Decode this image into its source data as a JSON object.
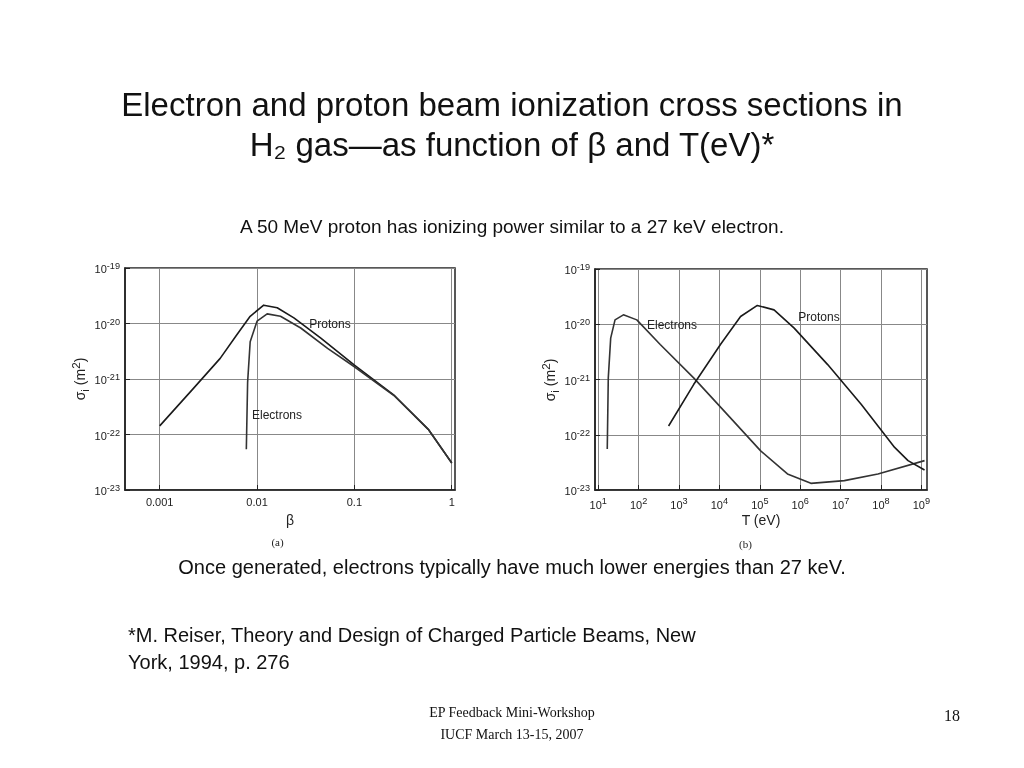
{
  "chart_data": [
    {
      "type": "other",
      "title": "Electron and proton beam ionization cross sections in H₂ gas—as function of β and T(eV)*",
      "subtitle": "A 50 MeV proton has ionizing power similar to a 27 keV electron."
    },
    {
      "type": "line",
      "xlabel": "β",
      "ylabel": "σ$_{i}$ (m$^{2}$)",
      "log": "xy",
      "grid": true,
      "marker": "none",
      "xlim": [
        0.00044,
        1.08
      ],
      "ylim": [
        1e-23,
        1e-19
      ],
      "xticks": [
        0.001,
        0.01,
        0.1,
        1
      ],
      "yticks": [
        {
          "value": 1e-23,
          "label": "10$^{-23}$"
        },
        {
          "value": 1e-22,
          "label": "10$^{-22}$"
        },
        {
          "value": 1e-21,
          "label": "10$^{-21}$"
        },
        {
          "value": 1e-20,
          "label": "10$^{-20}$"
        },
        {
          "value": 1e-19,
          "label": "10$^{-19}$"
        }
      ],
      "annotations": [
        "Protons",
        "Electrons",
        "(a)"
      ],
      "series": [
        {
          "color": "#1a1a1a",
          "x": [
            0.001,
            0.00221,
            0.00418,
            0.0062,
            0.0085,
            0.0117,
            0.0161,
            0.0239,
            0.0452,
            0.1,
            0.259,
            0.574,
            1
          ],
          "values": [
            1.43e-22,
            6.7e-22,
            2.35e-21,
            6.25e-21,
            1.35e-20,
            2.14e-20,
            1.92e-20,
            1.26e-20,
            5.45e-21,
            1.78e-21,
            5e-22,
            1.24e-22,
            3.06e-23
          ]
        },
        {
          "color": "#333333",
          "x": [
            0.00776,
            0.008,
            0.0085,
            0.01,
            0.0127,
            0.0174,
            0.0281,
            0.053,
            0.1,
            0.259,
            0.574,
            1
          ],
          "values": [
            5.4e-23,
            8.8e-22,
            4.7e-21,
            1.1e-20,
            1.49e-20,
            1.35e-20,
            8.3e-21,
            3.57e-21,
            1.66e-21,
            4.9e-22,
            1.24e-22,
            3.06e-23
          ]
        }
      ]
    },
    {
      "type": "line",
      "xlabel": "T (eV)",
      "ylabel": "σ$_{i}$ (m$^{2}$)",
      "log": "xy",
      "grid": true,
      "marker": "none",
      "xlim": [
        8.3,
        1380000000.0
      ],
      "ylim": [
        1e-23,
        1e-19
      ],
      "xticks": [
        {
          "value": 10,
          "label": "10$^{1}$"
        },
        {
          "value": 100,
          "label": "10$^{2}$"
        },
        {
          "value": 1000,
          "label": "10$^{3}$"
        },
        {
          "value": 10000,
          "label": "10$^{4}$"
        },
        {
          "value": 100000,
          "label": "10$^{5}$"
        },
        {
          "value": 1000000,
          "label": "10$^{6}$"
        },
        {
          "value": 10000000,
          "label": "10$^{7}$"
        },
        {
          "value": 100000000,
          "label": "10$^{8}$"
        },
        {
          "value": 1000000000,
          "label": "10$^{9}$"
        }
      ],
      "yticks": [
        {
          "value": 1e-23,
          "label": "10$^{-23}$"
        },
        {
          "value": 1e-22,
          "label": "10$^{-22}$"
        },
        {
          "value": 1e-21,
          "label": "10$^{-21}$"
        },
        {
          "value": 1e-20,
          "label": "10$^{-20}$"
        },
        {
          "value": 1e-19,
          "label": "10$^{-19}$"
        }
      ],
      "annotations": [
        "Electrons",
        "Protons",
        "(b)"
      ],
      "series": [
        {
          "color": "#333333",
          "x": [
            16.7,
            17.7,
            20.3,
            26,
            41.9,
            90,
            342,
            2300,
            15600,
            105000,
            484000,
            1840000,
            12400000,
            84000000,
            1200000000
          ],
          "values": [
            5.5e-23,
            1.07e-21,
            5.6e-21,
            1.2e-20,
            1.48e-20,
            1.2e-20,
            4.3e-21,
            1.07e-21,
            2.34e-22,
            5.1e-23,
            1.95e-23,
            1.32e-23,
            1.48e-23,
            1.95e-23,
            3.4e-23
          ]
        },
        {
          "color": "#1a1a1a",
          "x": [
            551,
            2300,
            10600,
            33400,
            86900,
            225000,
            710000,
            4790000,
            32300000,
            218000000,
            468000000,
            1200000000
          ],
          "values": [
            1.44e-22,
            8.1e-22,
            4.3e-21,
            1.38e-20,
            2.19e-20,
            1.82e-20,
            8.5e-21,
            1.86e-21,
            3.55e-22,
            5.9e-23,
            3.4e-23,
            2.3e-23
          ]
        }
      ]
    },
    {
      "type": "other",
      "annotations": [
        "Once generated, electrons typically have much lower energies than 27 keV.",
        "*M. Reiser, Theory and Design of Charged Particle Beams, New York, 1994, p. 276",
        "EP Feedback Mini-Workshop",
        "IUCF March 13-15, 2007",
        "18"
      ]
    }
  ]
}
